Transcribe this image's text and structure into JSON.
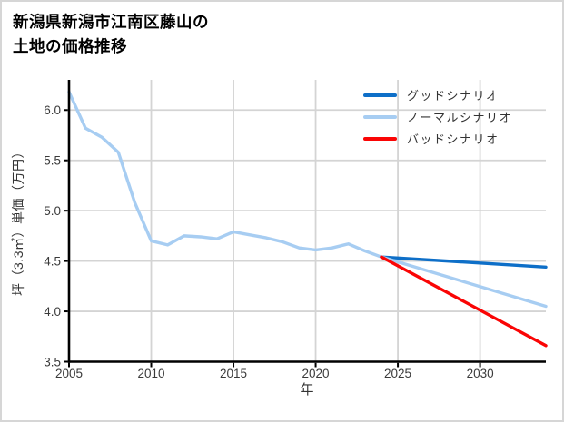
{
  "title": {
    "line1": "新潟県新潟市江南区藤山の",
    "line2": "土地の価格推移"
  },
  "chart_data": {
    "type": "line",
    "title": "新潟県新潟市江南区藤山の土地の価格推移",
    "xlabel": "年",
    "ylabel": "坪（3.3㎡）単価（万円）",
    "xlim": [
      2005,
      2034
    ],
    "ylim": [
      3.5,
      6.3
    ],
    "x_ticks": [
      2005,
      2010,
      2015,
      2020,
      2025,
      2030
    ],
    "y_ticks": [
      3.5,
      4.0,
      4.5,
      5.0,
      5.5,
      6.0
    ],
    "grid": true,
    "legend_position": "upper right",
    "colors": {
      "grid": "#d4d4d4",
      "axis": "#000000",
      "tick_text": "#3a3a3a"
    },
    "series": [
      {
        "key": "history",
        "label": null,
        "color": "#a7cdf2",
        "x": [
          2005,
          2006,
          2007,
          2008,
          2009,
          2010,
          2011,
          2012,
          2013,
          2014,
          2015,
          2016,
          2017,
          2018,
          2019,
          2020,
          2021,
          2022,
          2023,
          2024
        ],
        "y": [
          6.18,
          5.82,
          5.73,
          5.58,
          5.08,
          4.7,
          4.66,
          4.75,
          4.74,
          4.72,
          4.79,
          4.76,
          4.73,
          4.69,
          4.63,
          4.61,
          4.63,
          4.67,
          4.6,
          4.54
        ]
      },
      {
        "key": "good",
        "label": "グッドシナリオ",
        "color": "#0e6fc8",
        "x": [
          2024,
          2034
        ],
        "y": [
          4.54,
          4.44
        ]
      },
      {
        "key": "normal",
        "label": "ノーマルシナリオ",
        "color": "#a7cdf2",
        "x": [
          2024,
          2034
        ],
        "y": [
          4.54,
          4.05
        ]
      },
      {
        "key": "bad",
        "label": "バッドシナリオ",
        "color": "#fa0505",
        "x": [
          2024,
          2034
        ],
        "y": [
          4.54,
          3.66
        ]
      }
    ]
  }
}
